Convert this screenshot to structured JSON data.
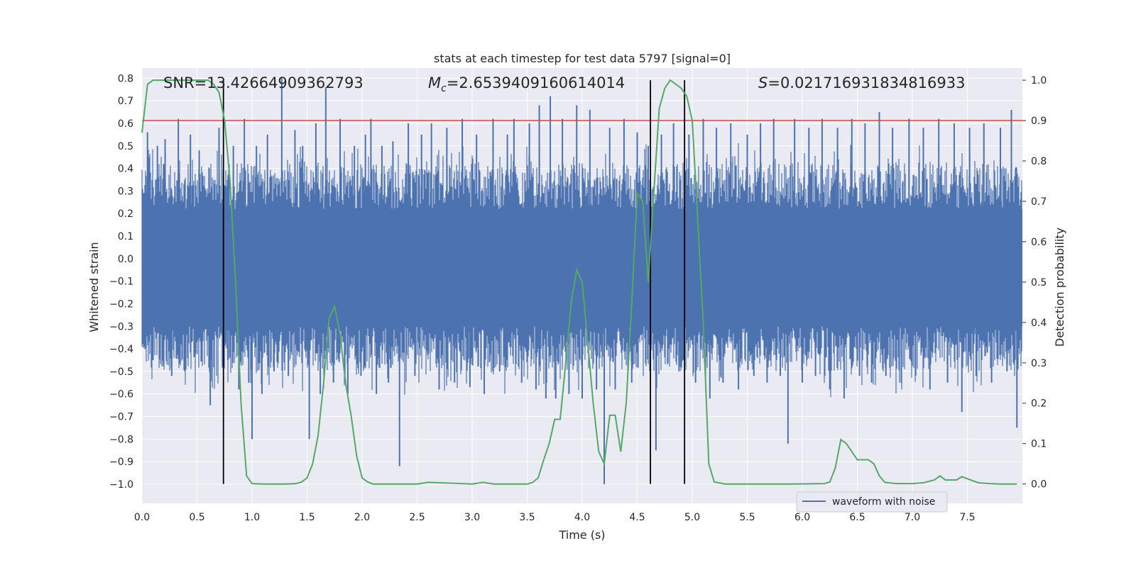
{
  "chart_data": {
    "type": "line",
    "title": "stats at each timestep for test data 5797 [signal=0]",
    "xlabel": "Time (s)",
    "ylabel": "Whitened strain",
    "y2label": "Detection probability",
    "xlim": [
      0.0,
      8.0
    ],
    "ylim": [
      -1.085,
      0.845
    ],
    "y2lim": [
      -0.048,
      1.03
    ],
    "x_ticks": [
      "0.0",
      "0.5",
      "1.0",
      "1.5",
      "2.0",
      "2.5",
      "3.0",
      "3.5",
      "4.0",
      "4.5",
      "5.0",
      "5.5",
      "6.0",
      "6.5",
      "7.0",
      "7.5"
    ],
    "y_ticks": [
      "0.8",
      "0.7",
      "0.6",
      "0.5",
      "0.4",
      "0.3",
      "0.2",
      "0.1",
      "0.0",
      "-0.1",
      "-0.2",
      "-0.3",
      "-0.4",
      "-0.5",
      "-0.6",
      "-0.7",
      "-0.8",
      "-0.9",
      "-1.0"
    ],
    "y2_ticks": [
      "1.0",
      "0.9",
      "0.8",
      "0.7",
      "0.6",
      "0.5",
      "0.4",
      "0.3",
      "0.2",
      "0.1",
      "0.0"
    ],
    "grid": true,
    "legend": {
      "placement": "lower-right",
      "entries": [
        "waveform with noise"
      ]
    },
    "annotations": {
      "snr": "SNR=13.42664909362793",
      "mc_symbol": "M",
      "mc_sub": "c",
      "mc_value": "=2.6539409160614014",
      "s_symbol": "S",
      "s_value": "=0.021716931834816933"
    },
    "threshold": {
      "axis": "right",
      "value": 0.9
    },
    "vertical_lines": [
      0.74,
      4.62,
      4.93
    ],
    "series": [
      {
        "name": "waveform with noise",
        "axis": "left",
        "color": "#4c72b0",
        "note": "dense noise band approximately between -0.3 and 0.2 with spikes",
        "spikes": [
          [
            0.05,
            0.56
          ],
          [
            0.1,
            -0.45
          ],
          [
            0.14,
            0.5
          ],
          [
            0.21,
            0.53
          ],
          [
            0.27,
            -0.52
          ],
          [
            0.33,
            0.62
          ],
          [
            0.39,
            -0.5
          ],
          [
            0.44,
            0.55
          ],
          [
            0.52,
            0.48
          ],
          [
            0.62,
            -0.65
          ],
          [
            0.7,
            0.58
          ],
          [
            0.78,
            -0.45
          ],
          [
            0.83,
            0.5
          ],
          [
            0.88,
            -0.58
          ],
          [
            0.93,
            0.62
          ],
          [
            0.97,
            -0.55
          ],
          [
            1.0,
            -0.8
          ],
          [
            1.04,
            0.5
          ],
          [
            1.09,
            -0.6
          ],
          [
            1.14,
            0.55
          ],
          [
            1.2,
            -0.5
          ],
          [
            1.27,
            0.8
          ],
          [
            1.33,
            -0.52
          ],
          [
            1.39,
            0.57
          ],
          [
            1.46,
            0.5
          ],
          [
            1.52,
            -0.8
          ],
          [
            1.58,
            0.6
          ],
          [
            1.62,
            -0.6
          ],
          [
            1.67,
            0.76
          ],
          [
            1.74,
            -0.55
          ],
          [
            1.8,
            0.62
          ],
          [
            1.87,
            -0.6
          ],
          [
            1.93,
            0.5
          ],
          [
            1.99,
            -0.52
          ],
          [
            2.03,
            0.55
          ],
          [
            2.08,
            0.62
          ],
          [
            2.13,
            -0.6
          ],
          [
            2.18,
            0.5
          ],
          [
            2.24,
            -0.55
          ],
          [
            2.28,
            0.52
          ],
          [
            2.34,
            -0.92
          ],
          [
            2.42,
            0.6
          ],
          [
            2.48,
            -0.52
          ],
          [
            2.54,
            0.55
          ],
          [
            2.63,
            0.6
          ],
          [
            2.7,
            -0.58
          ],
          [
            2.77,
            0.58
          ],
          [
            2.84,
            -0.55
          ],
          [
            2.91,
            0.62
          ],
          [
            2.98,
            -0.57
          ],
          [
            3.04,
            0.55
          ],
          [
            3.11,
            -0.6
          ],
          [
            3.19,
            0.62
          ],
          [
            3.25,
            -0.5
          ],
          [
            3.32,
            0.55
          ],
          [
            3.38,
            0.62
          ],
          [
            3.45,
            -0.55
          ],
          [
            3.52,
            0.6
          ],
          [
            3.58,
            -0.58
          ],
          [
            3.61,
            0.68
          ],
          [
            3.67,
            -0.62
          ],
          [
            3.71,
            0.72
          ],
          [
            3.76,
            -0.62
          ],
          [
            3.82,
            0.62
          ],
          [
            3.88,
            -0.6
          ],
          [
            3.95,
            0.68
          ],
          [
            4.0,
            -0.62
          ],
          [
            4.07,
            0.66
          ],
          [
            4.13,
            -0.58
          ],
          [
            4.2,
            -1.0
          ],
          [
            4.25,
            0.58
          ],
          [
            4.3,
            -0.58
          ],
          [
            4.38,
            0.62
          ],
          [
            4.45,
            -0.55
          ],
          [
            4.5,
            0.56
          ],
          [
            4.6,
            0.5
          ],
          [
            4.67,
            -0.85
          ],
          [
            4.72,
            0.55
          ],
          [
            4.83,
            0.6
          ],
          [
            4.88,
            -0.5
          ],
          [
            4.97,
            0.55
          ],
          [
            5.03,
            -0.55
          ],
          [
            5.1,
            0.62
          ],
          [
            5.16,
            -0.62
          ],
          [
            5.22,
            0.58
          ],
          [
            5.28,
            -0.55
          ],
          [
            5.35,
            0.6
          ],
          [
            5.42,
            -0.58
          ],
          [
            5.5,
            0.55
          ],
          [
            5.56,
            -0.52
          ],
          [
            5.62,
            0.6
          ],
          [
            5.68,
            -0.55
          ],
          [
            5.74,
            0.62
          ],
          [
            5.8,
            -0.52
          ],
          [
            5.87,
            -0.82
          ],
          [
            5.93,
            0.62
          ],
          [
            6.0,
            -0.55
          ],
          [
            6.06,
            0.58
          ],
          [
            6.12,
            -0.52
          ],
          [
            6.18,
            0.62
          ],
          [
            6.25,
            -0.58
          ],
          [
            6.32,
            0.58
          ],
          [
            6.38,
            -0.62
          ],
          [
            6.45,
            0.62
          ],
          [
            6.52,
            -0.52
          ],
          [
            6.57,
            0.6
          ],
          [
            6.63,
            -0.55
          ],
          [
            6.7,
            0.65
          ],
          [
            6.76,
            -0.52
          ],
          [
            6.82,
            0.58
          ],
          [
            6.9,
            -0.55
          ],
          [
            6.97,
            0.62
          ],
          [
            7.03,
            -0.52
          ],
          [
            7.1,
            0.58
          ],
          [
            7.16,
            -0.58
          ],
          [
            7.24,
            0.62
          ],
          [
            7.32,
            -0.55
          ],
          [
            7.38,
            0.6
          ],
          [
            7.45,
            -0.68
          ],
          [
            7.52,
            0.58
          ],
          [
            7.58,
            -0.52
          ],
          [
            7.65,
            0.6
          ],
          [
            7.72,
            -0.55
          ],
          [
            7.8,
            0.58
          ],
          [
            7.86,
            -0.5
          ],
          [
            7.9,
            0.66
          ],
          [
            7.95,
            -0.75
          ]
        ]
      },
      {
        "name": "",
        "axis": "right",
        "color": "#55a868",
        "points": [
          [
            0.0,
            0.87
          ],
          [
            0.05,
            0.99
          ],
          [
            0.1,
            1.0
          ],
          [
            0.2,
            1.0
          ],
          [
            0.3,
            1.0
          ],
          [
            0.4,
            1.0
          ],
          [
            0.5,
            1.0
          ],
          [
            0.6,
            1.0
          ],
          [
            0.65,
            0.99
          ],
          [
            0.7,
            0.97
          ],
          [
            0.75,
            0.9
          ],
          [
            0.8,
            0.75
          ],
          [
            0.85,
            0.5
          ],
          [
            0.9,
            0.2
          ],
          [
            0.95,
            0.02
          ],
          [
            1.0,
            0.001
          ],
          [
            1.1,
            0.0
          ],
          [
            1.2,
            0.0
          ],
          [
            1.3,
            0.0
          ],
          [
            1.4,
            0.001
          ],
          [
            1.45,
            0.005
          ],
          [
            1.5,
            0.015
          ],
          [
            1.55,
            0.05
          ],
          [
            1.6,
            0.12
          ],
          [
            1.65,
            0.25
          ],
          [
            1.7,
            0.41
          ],
          [
            1.75,
            0.44
          ],
          [
            1.8,
            0.37
          ],
          [
            1.85,
            0.25
          ],
          [
            1.9,
            0.17
          ],
          [
            1.95,
            0.07
          ],
          [
            2.0,
            0.015
          ],
          [
            2.05,
            0.005
          ],
          [
            2.1,
            0.0
          ],
          [
            2.4,
            0.0
          ],
          [
            2.5,
            0.0
          ],
          [
            2.6,
            0.004
          ],
          [
            2.8,
            0.002
          ],
          [
            3.0,
            0.0
          ],
          [
            3.1,
            0.004
          ],
          [
            3.2,
            0.0
          ],
          [
            3.4,
            0.0
          ],
          [
            3.5,
            0.0
          ],
          [
            3.55,
            0.004
          ],
          [
            3.6,
            0.015
          ],
          [
            3.65,
            0.06
          ],
          [
            3.7,
            0.1
          ],
          [
            3.75,
            0.16
          ],
          [
            3.8,
            0.16
          ],
          [
            3.85,
            0.3
          ],
          [
            3.9,
            0.45
          ],
          [
            3.95,
            0.53
          ],
          [
            4.0,
            0.5
          ],
          [
            4.05,
            0.35
          ],
          [
            4.1,
            0.2
          ],
          [
            4.15,
            0.08
          ],
          [
            4.2,
            0.05
          ],
          [
            4.25,
            0.17
          ],
          [
            4.3,
            0.17
          ],
          [
            4.35,
            0.08
          ],
          [
            4.4,
            0.2
          ],
          [
            4.45,
            0.45
          ],
          [
            4.5,
            0.72
          ],
          [
            4.55,
            0.7
          ],
          [
            4.6,
            0.5
          ],
          [
            4.65,
            0.72
          ],
          [
            4.7,
            0.93
          ],
          [
            4.75,
            0.98
          ],
          [
            4.8,
            1.0
          ],
          [
            4.85,
            0.99
          ],
          [
            4.9,
            0.98
          ],
          [
            4.95,
            0.96
          ],
          [
            5.0,
            0.9
          ],
          [
            5.05,
            0.65
          ],
          [
            5.1,
            0.4
          ],
          [
            5.15,
            0.05
          ],
          [
            5.2,
            0.005
          ],
          [
            5.3,
            0.0
          ],
          [
            5.6,
            0.0
          ],
          [
            5.9,
            0.0
          ],
          [
            6.2,
            0.001
          ],
          [
            6.25,
            0.005
          ],
          [
            6.3,
            0.04
          ],
          [
            6.35,
            0.11
          ],
          [
            6.4,
            0.1
          ],
          [
            6.45,
            0.08
          ],
          [
            6.5,
            0.06
          ],
          [
            6.6,
            0.06
          ],
          [
            6.65,
            0.05
          ],
          [
            6.7,
            0.02
          ],
          [
            6.75,
            0.004
          ],
          [
            6.85,
            0.001
          ],
          [
            7.0,
            0.001
          ],
          [
            7.1,
            0.003
          ],
          [
            7.2,
            0.01
          ],
          [
            7.25,
            0.02
          ],
          [
            7.3,
            0.01
          ],
          [
            7.35,
            0.01
          ],
          [
            7.4,
            0.01
          ],
          [
            7.45,
            0.018
          ],
          [
            7.5,
            0.013
          ],
          [
            7.6,
            0.003
          ],
          [
            7.7,
            0.001
          ],
          [
            7.8,
            0.0
          ],
          [
            7.95,
            0.0
          ]
        ]
      }
    ]
  }
}
